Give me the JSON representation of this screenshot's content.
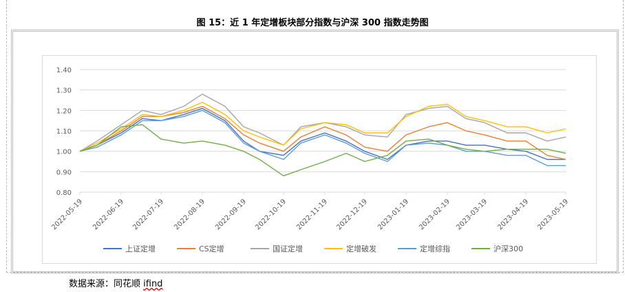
{
  "title": "图 15：近 1 年定增板块部分指数与沪深 300 指数走势图",
  "source_prefix": "数据来源：同花顺 ",
  "source_wavy": "ifind",
  "chart_data": {
    "type": "line",
    "title": "图 15：近 1 年定增板块部分指数与沪深 300 指数走势图",
    "xlabel": "",
    "ylabel": "",
    "ylim": [
      0.8,
      1.4
    ],
    "yticks": [
      "0.80",
      "0.90",
      "1.00",
      "1.10",
      "1.20",
      "1.30",
      "1.40"
    ],
    "grid": true,
    "legend_position": "bottom",
    "x_tick_labels": [
      "2022-05-19",
      "2022-06-19",
      "2022-07-19",
      "2022-08-19",
      "2022-09-19",
      "2022-10-19",
      "2022-11-19",
      "2022-12-19",
      "2023-01-19",
      "2023-02-19",
      "2023-03-19",
      "2023-04-19",
      "2023-05-19"
    ],
    "x": [
      "2022-05-19",
      "2022-06-01",
      "2022-06-19",
      "2022-07-05",
      "2022-07-19",
      "2022-08-05",
      "2022-08-19",
      "2022-09-05",
      "2022-09-19",
      "2022-10-01",
      "2022-10-19",
      "2022-11-01",
      "2022-11-19",
      "2022-12-05",
      "2022-12-19",
      "2023-01-05",
      "2023-01-19",
      "2023-02-05",
      "2023-02-19",
      "2023-03-05",
      "2023-03-19",
      "2023-04-05",
      "2023-04-19",
      "2023-05-05",
      "2023-05-19"
    ],
    "series": [
      {
        "name": "上证定增",
        "color": "#4472c4",
        "values": [
          1.0,
          1.03,
          1.09,
          1.16,
          1.15,
          1.18,
          1.21,
          1.15,
          1.05,
          1.0,
          0.98,
          1.05,
          1.09,
          1.05,
          1.0,
          0.96,
          1.03,
          1.05,
          1.05,
          1.03,
          1.03,
          1.01,
          1.0,
          0.96,
          0.96
        ]
      },
      {
        "name": "CS定增",
        "color": "#ed7d31",
        "values": [
          1.0,
          1.03,
          1.1,
          1.17,
          1.17,
          1.19,
          1.22,
          1.16,
          1.08,
          1.04,
          1.0,
          1.07,
          1.12,
          1.08,
          1.02,
          1.0,
          1.08,
          1.12,
          1.14,
          1.1,
          1.08,
          1.05,
          1.05,
          0.98,
          0.96
        ]
      },
      {
        "name": "国证定增",
        "color": "#a5a5a5",
        "values": [
          1.0,
          1.05,
          1.13,
          1.2,
          1.18,
          1.22,
          1.28,
          1.22,
          1.12,
          1.09,
          1.03,
          1.12,
          1.14,
          1.12,
          1.08,
          1.07,
          1.18,
          1.21,
          1.22,
          1.16,
          1.14,
          1.09,
          1.09,
          1.05,
          1.07
        ]
      },
      {
        "name": "定增破发",
        "color": "#ffc000",
        "values": [
          1.0,
          1.04,
          1.11,
          1.18,
          1.17,
          1.2,
          1.24,
          1.18,
          1.1,
          1.07,
          1.03,
          1.11,
          1.14,
          1.13,
          1.09,
          1.09,
          1.17,
          1.22,
          1.23,
          1.17,
          1.15,
          1.12,
          1.12,
          1.09,
          1.11
        ]
      },
      {
        "name": "定增综指",
        "color": "#5b9bd5",
        "values": [
          1.0,
          1.02,
          1.08,
          1.15,
          1.15,
          1.17,
          1.2,
          1.14,
          1.04,
          1.0,
          0.96,
          1.04,
          1.08,
          1.04,
          0.99,
          0.95,
          1.03,
          1.04,
          1.03,
          1.0,
          1.0,
          0.98,
          0.98,
          0.93,
          0.93
        ]
      },
      {
        "name": "沪深300",
        "color": "#70ad47",
        "values": [
          1.0,
          1.03,
          1.12,
          1.13,
          1.06,
          1.04,
          1.05,
          1.03,
          1.0,
          0.96,
          0.88,
          0.91,
          0.95,
          0.99,
          0.95,
          0.98,
          1.05,
          1.06,
          1.03,
          1.01,
          1.0,
          1.01,
          1.01,
          1.01,
          0.99
        ]
      }
    ]
  }
}
